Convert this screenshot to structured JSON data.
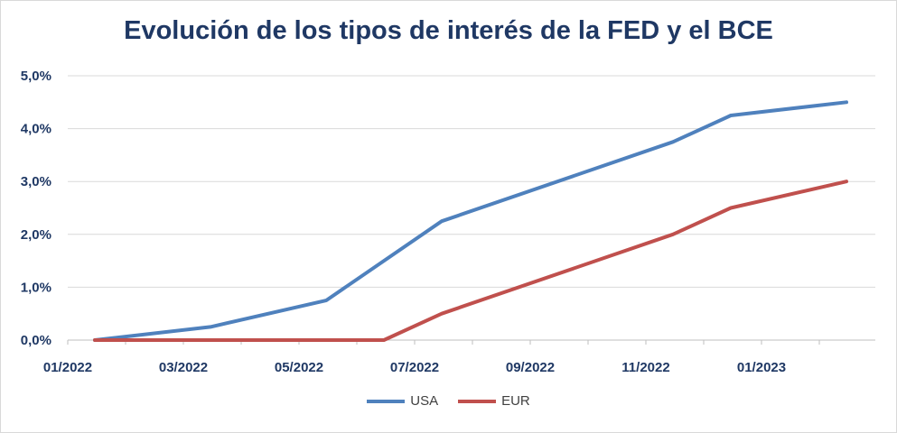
{
  "chart_data": {
    "type": "line",
    "title": "Evolución de los tipos de interés de la FED y el BCE",
    "x_ticks": [
      "01/2022",
      "03/2022",
      "05/2022",
      "07/2022",
      "09/2022",
      "11/2022",
      "01/2023"
    ],
    "y_ticks": [
      "0,0%",
      "1,0%",
      "2,0%",
      "3,0%",
      "4,0%",
      "5,0%"
    ],
    "ylim": [
      0,
      5
    ],
    "y_unit": "%",
    "grid": true,
    "legend_position": "bottom",
    "series": [
      {
        "name": "USA",
        "color": "#4f81bd",
        "points": [
          {
            "x": "01/2022",
            "y": 0.0
          },
          {
            "x": "03/2022",
            "y": 0.25
          },
          {
            "x": "05/2022",
            "y": 0.75
          },
          {
            "x": "07/2022",
            "y": 2.25
          },
          {
            "x": "11/2022",
            "y": 3.75
          },
          {
            "x": "12/2022",
            "y": 4.25
          },
          {
            "x": "02/2023",
            "y": 4.5
          }
        ]
      },
      {
        "name": "EUR",
        "color": "#c0504d",
        "points": [
          {
            "x": "01/2022",
            "y": 0.0
          },
          {
            "x": "03/2022",
            "y": 0.0
          },
          {
            "x": "05/2022",
            "y": 0.0
          },
          {
            "x": "06/2022",
            "y": 0.0
          },
          {
            "x": "07/2022",
            "y": 0.5
          },
          {
            "x": "11/2022",
            "y": 2.0
          },
          {
            "x": "12/2022",
            "y": 2.5
          },
          {
            "x": "02/2023",
            "y": 3.0
          }
        ]
      }
    ]
  }
}
